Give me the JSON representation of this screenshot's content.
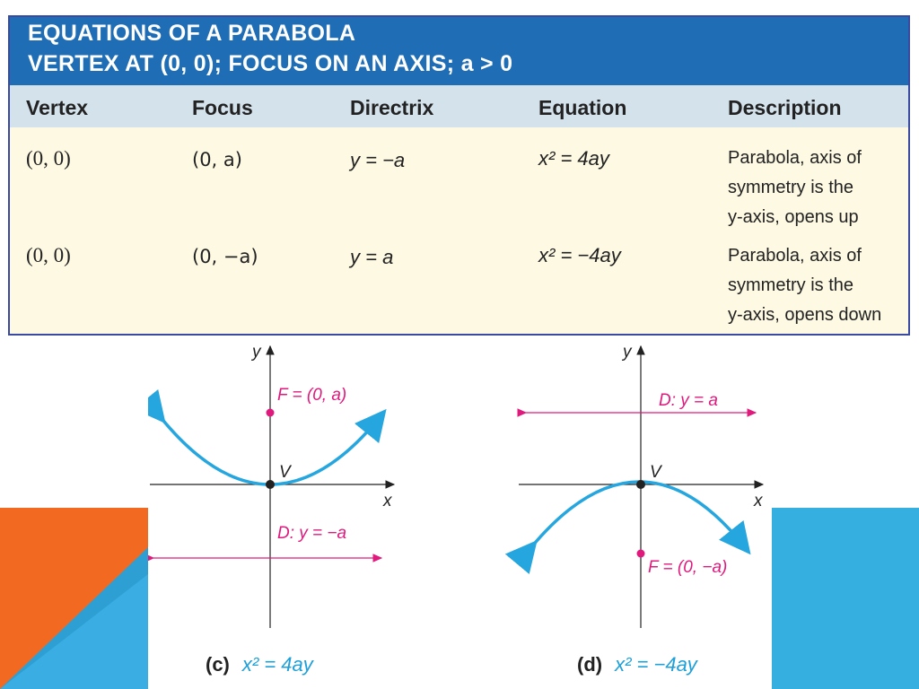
{
  "title": {
    "line1": "EQUATIONS OF A PARABOLA",
    "line2": "VERTEX AT (0, 0); FOCUS ON AN AXIS; a > 0"
  },
  "table": {
    "headers": [
      "Vertex",
      "Focus",
      "Directrix",
      "Equation",
      "Description"
    ],
    "rows": [
      {
        "vertex": "(0, 0)",
        "focus": "(0, a)",
        "directrix": "y = −a",
        "equation": "x² = 4ay",
        "description": [
          "Parabola, axis of",
          "symmetry is the",
          "y-axis, opens up"
        ]
      },
      {
        "vertex": "(0, 0)",
        "focus": "(0, −a)",
        "directrix": "y = a",
        "equation": "x² = −4ay",
        "description": [
          "Parabola, axis of",
          "symmetry is the",
          "y-axis, opens down"
        ]
      }
    ]
  },
  "graphs": [
    {
      "caption_tag": "(c)",
      "caption_eq": "x² = 4ay",
      "y_label": "y",
      "x_label": "x",
      "vertex_label": "V",
      "focus_label": "F = (0, a)",
      "directrix_label": "D: y = −a"
    },
    {
      "caption_tag": "(d)",
      "caption_eq": "x² = −4ay",
      "y_label": "y",
      "x_label": "x",
      "vertex_label": "V",
      "focus_label": "F = (0, −a)",
      "directrix_label": "D: y = a"
    }
  ],
  "colors": {
    "title_band": "#1f6db4",
    "header_band": "#d4e2ec",
    "table_body": "#fdf9e3",
    "parabola": "#26a6df",
    "annotation": "#e0197d",
    "deco_orange": "#f26a21",
    "deco_blue": "#35aee0"
  }
}
